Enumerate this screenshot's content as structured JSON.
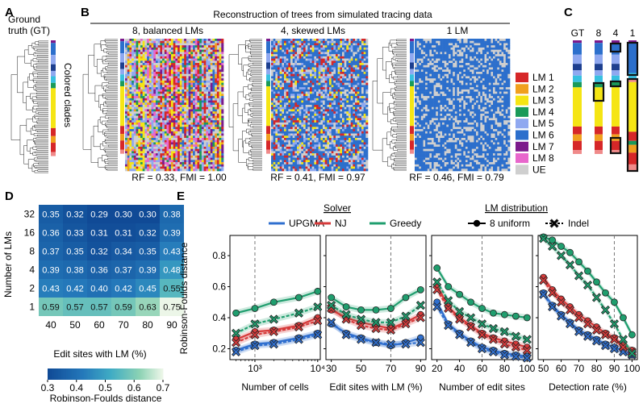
{
  "panels": {
    "A": {
      "letter": "A",
      "gt_line1": "Ground",
      "gt_line2": "truth (GT)",
      "colored_clades": "Colored clades"
    },
    "B": {
      "letter": "B",
      "title": "Reconstruction of trees from simulated tracing data",
      "sub": [
        {
          "label": "8, balanced LMs",
          "metric": "RF = 0.33, FMI = 1.00"
        },
        {
          "label": "4, skewed LMs",
          "metric": "RF = 0.41, FMI = 0.97"
        },
        {
          "label": "1 LM",
          "metric": "RF = 0.46, FMI = 0.79"
        }
      ]
    },
    "C": {
      "letter": "C",
      "cols": [
        "GT",
        "8",
        "4",
        "1"
      ]
    },
    "D": {
      "letter": "D",
      "ylabel": "Number of LMs",
      "xlabel": "Edit sites with LM (%)",
      "cbar_label": "Robinson-Foulds distance",
      "cbar_ticks": [
        "0.3",
        "0.4",
        "0.5",
        "0.6",
        "0.7"
      ]
    },
    "E": {
      "letter": "E",
      "ylabel": "Robinson-Foulds distance",
      "legend_solver_title": "Solver",
      "legend_solvers": [
        "UPGMA",
        "NJ",
        "Greedy"
      ],
      "legend_lm_title": "LM distribution",
      "legend_lm": [
        "8 uniform",
        "Indel"
      ],
      "yticks": [
        "0.2",
        "0.4",
        "0.6",
        "0.8"
      ],
      "subplots": [
        {
          "xlabel": "Number of cells",
          "xticks": [
            "10³",
            "10⁴"
          ]
        },
        {
          "xlabel": "Edit sites with LM (%)",
          "xticks": [
            "30",
            "50",
            "70",
            "90"
          ]
        },
        {
          "xlabel": "Number of edit sites",
          "xticks": [
            "20",
            "40",
            "60",
            "80",
            "100"
          ]
        },
        {
          "xlabel": "Detection rate (%)",
          "xticks": [
            "50",
            "60",
            "70",
            "80",
            "90",
            "100"
          ]
        }
      ]
    }
  },
  "legend_lm_colors": [
    {
      "label": "LM 1",
      "color": "#d62728"
    },
    {
      "label": "LM 2",
      "color": "#f0a01e"
    },
    {
      "label": "LM 3",
      "color": "#f5e514"
    },
    {
      "label": "LM 4",
      "color": "#1a9a5a"
    },
    {
      "label": "LM 5",
      "color": "#8fa8f0"
    },
    {
      "label": "LM 6",
      "color": "#2c6fcc"
    },
    {
      "label": "LM 7",
      "color": "#7b1a8c"
    },
    {
      "label": "LM 8",
      "color": "#e866cc"
    },
    {
      "label": "UE",
      "color": "#cfcfcf"
    }
  ],
  "colors": {
    "upgma": "#2f6fcf",
    "nj": "#d63a3a",
    "greedy": "#1f9e6e"
  },
  "chart_data": [
    {
      "type": "heatmap",
      "title": "",
      "xlabel": "Edit sites with LM (%)",
      "ylabel": "Number of LMs",
      "x": [
        "40",
        "50",
        "60",
        "70",
        "80",
        "90"
      ],
      "y": [
        "32",
        "16",
        "8",
        "4",
        "2",
        "1"
      ],
      "values": [
        [
          0.35,
          0.32,
          0.29,
          0.3,
          0.3,
          0.38
        ],
        [
          0.36,
          0.33,
          0.31,
          0.31,
          0.32,
          0.39
        ],
        [
          0.37,
          0.35,
          0.32,
          0.34,
          0.35,
          0.43
        ],
        [
          0.39,
          0.38,
          0.36,
          0.37,
          0.39,
          0.48
        ],
        [
          0.43,
          0.42,
          0.4,
          0.42,
          0.45,
          0.55
        ],
        [
          0.59,
          0.57,
          0.57,
          0.59,
          0.63,
          0.75
        ]
      ],
      "colorbar_range": [
        0.3,
        0.7
      ],
      "colorbar_label": "Robinson-Foulds distance"
    },
    {
      "type": "line",
      "xlabel": "Number of cells",
      "ylabel": "Robinson-Foulds distance",
      "x": [
        500,
        1000,
        2000,
        5000,
        10000
      ],
      "xscale": "log",
      "ylim": [
        0.13,
        0.93
      ],
      "reference_line_x": 1000,
      "series": [
        {
          "name": "UPGMA",
          "marker": "circle",
          "values": [
            0.19,
            0.23,
            0.24,
            0.27,
            0.3
          ]
        },
        {
          "name": "NJ",
          "marker": "circle",
          "values": [
            0.26,
            0.31,
            0.32,
            0.35,
            0.4
          ]
        },
        {
          "name": "Greedy",
          "marker": "circle",
          "values": [
            0.43,
            0.46,
            0.5,
            0.53,
            0.57
          ]
        },
        {
          "name": "UPGMA",
          "marker": "cross",
          "values": [
            0.18,
            0.22,
            0.23,
            0.26,
            0.29
          ]
        },
        {
          "name": "NJ",
          "marker": "cross",
          "values": [
            0.24,
            0.29,
            0.31,
            0.34,
            0.38
          ]
        },
        {
          "name": "Greedy",
          "marker": "cross",
          "values": [
            0.3,
            0.36,
            0.39,
            0.43,
            0.47
          ]
        }
      ]
    },
    {
      "type": "line",
      "xlabel": "Edit sites with LM (%)",
      "ylabel": "",
      "x": [
        30,
        40,
        50,
        60,
        70,
        80,
        90
      ],
      "ylim": [
        0.13,
        0.93
      ],
      "reference_line_x": 70,
      "series": [
        {
          "name": "UPGMA",
          "marker": "circle",
          "values": [
            0.36,
            0.3,
            0.27,
            0.24,
            0.22,
            0.24,
            0.27
          ]
        },
        {
          "name": "NJ",
          "marker": "circle",
          "values": [
            0.45,
            0.4,
            0.37,
            0.35,
            0.33,
            0.37,
            0.42
          ]
        },
        {
          "name": "Greedy",
          "marker": "circle",
          "values": [
            0.53,
            0.47,
            0.45,
            0.45,
            0.46,
            0.53,
            0.58
          ]
        },
        {
          "name": "UPGMA",
          "marker": "cross",
          "values": [
            0.37,
            0.29,
            0.26,
            0.24,
            0.23,
            0.23,
            0.24
          ]
        },
        {
          "name": "NJ",
          "marker": "cross",
          "values": [
            0.46,
            0.39,
            0.35,
            0.33,
            0.32,
            0.36,
            0.4
          ]
        },
        {
          "name": "Greedy",
          "marker": "cross",
          "values": [
            0.48,
            0.42,
            0.39,
            0.37,
            0.37,
            0.41,
            0.48
          ]
        }
      ]
    },
    {
      "type": "line",
      "xlabel": "Number of edit sites",
      "ylabel": "",
      "x": [
        20,
        30,
        40,
        50,
        60,
        70,
        80,
        90,
        100
      ],
      "ylim": [
        0.13,
        0.93
      ],
      "reference_line_x": 60,
      "series": [
        {
          "name": "UPGMA",
          "marker": "circle",
          "values": [
            0.5,
            0.36,
            0.3,
            0.25,
            0.21,
            0.19,
            0.17,
            0.16,
            0.15
          ]
        },
        {
          "name": "NJ",
          "marker": "circle",
          "values": [
            0.61,
            0.47,
            0.4,
            0.35,
            0.3,
            0.27,
            0.25,
            0.23,
            0.21
          ]
        },
        {
          "name": "Greedy",
          "marker": "circle",
          "values": [
            0.72,
            0.6,
            0.55,
            0.5,
            0.46,
            0.43,
            0.42,
            0.41,
            0.4
          ]
        },
        {
          "name": "UPGMA",
          "marker": "cross",
          "values": [
            0.47,
            0.35,
            0.29,
            0.24,
            0.2,
            0.18,
            0.16,
            0.15,
            0.14
          ]
        },
        {
          "name": "NJ",
          "marker": "cross",
          "values": [
            0.58,
            0.46,
            0.39,
            0.34,
            0.29,
            0.26,
            0.23,
            0.21,
            0.19
          ]
        },
        {
          "name": "Greedy",
          "marker": "cross",
          "values": [
            0.63,
            0.51,
            0.44,
            0.4,
            0.36,
            0.33,
            0.31,
            0.28,
            0.26
          ]
        }
      ]
    },
    {
      "type": "line",
      "xlabel": "Detection rate (%)",
      "ylabel": "",
      "x": [
        50,
        55,
        60,
        65,
        70,
        75,
        80,
        85,
        90,
        95,
        100
      ],
      "ylim": [
        0.13,
        0.93
      ],
      "reference_line_x": 90,
      "series": [
        {
          "name": "UPGMA",
          "marker": "circle",
          "values": [
            0.56,
            0.48,
            0.42,
            0.37,
            0.32,
            0.29,
            0.26,
            0.23,
            0.21,
            0.19,
            0.16
          ]
        },
        {
          "name": "NJ",
          "marker": "circle",
          "values": [
            0.66,
            0.58,
            0.52,
            0.47,
            0.42,
            0.38,
            0.34,
            0.3,
            0.27,
            0.22,
            0.19
          ]
        },
        {
          "name": "Greedy",
          "marker": "circle",
          "values": [
            0.92,
            0.9,
            0.86,
            0.82,
            0.76,
            0.7,
            0.63,
            0.56,
            0.5,
            0.4,
            0.29
          ]
        },
        {
          "name": "UPGMA",
          "marker": "cross",
          "values": [
            0.55,
            0.47,
            0.41,
            0.36,
            0.31,
            0.28,
            0.25,
            0.22,
            0.2,
            0.18,
            0.16
          ]
        },
        {
          "name": "NJ",
          "marker": "cross",
          "values": [
            0.64,
            0.56,
            0.5,
            0.45,
            0.4,
            0.36,
            0.32,
            0.29,
            0.26,
            0.21,
            0.18
          ]
        },
        {
          "name": "Greedy",
          "marker": "cross",
          "values": [
            0.91,
            0.86,
            0.8,
            0.74,
            0.67,
            0.61,
            0.53,
            0.45,
            0.36,
            0.26,
            0.17
          ]
        }
      ]
    }
  ]
}
